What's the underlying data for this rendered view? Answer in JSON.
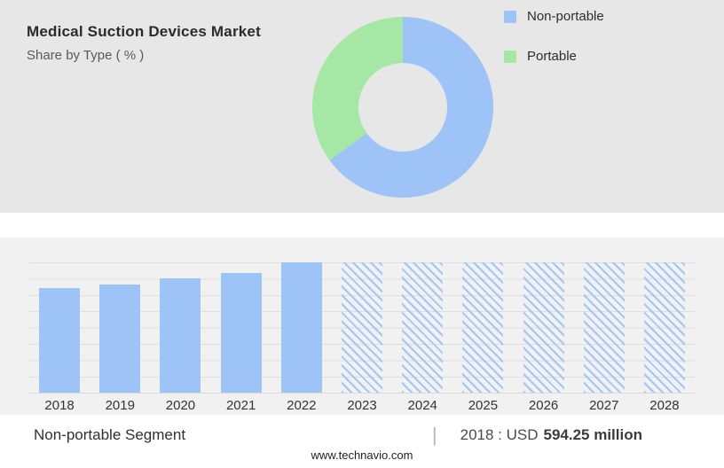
{
  "header": {
    "title": "Medical Suction Devices Market",
    "subtitle": "Share by Type ( % )"
  },
  "legend": [
    {
      "label": "Non-portable",
      "color": "#9dc3f7"
    },
    {
      "label": "Portable",
      "color": "#a5e7a5"
    }
  ],
  "chart_data": [
    {
      "type": "pie",
      "donut": true,
      "title": "Medical Suction Devices Market - Share by Type ( % )",
      "labels": [
        "Non-portable",
        "Portable"
      ],
      "values": [
        65,
        35
      ],
      "colors": [
        "#9dc3f7",
        "#a5e7a5"
      ],
      "legend_position": "right"
    },
    {
      "type": "bar",
      "title": "Non-portable Segment",
      "categories": [
        "2018",
        "2019",
        "2020",
        "2021",
        "2022",
        "2023",
        "2024",
        "2025",
        "2026",
        "2027",
        "2028"
      ],
      "values": [
        80,
        83,
        88,
        92,
        100,
        100,
        100,
        100,
        100,
        100,
        100
      ],
      "bar_color": "#9dc3f7",
      "hatched_from": "2023",
      "grid": true,
      "ylim": [
        0,
        100
      ],
      "xlabel": "",
      "ylabel": "",
      "note": "2023-2028 bars are forecast (hatched); heights are relative index values, 2018 = USD 594.25 million"
    }
  ],
  "footer": {
    "segment_label": "Non-portable Segment",
    "separator": "|",
    "stat_prefix": "2018 : USD",
    "stat_value": "594.25 million",
    "website": "www.technavio.com"
  }
}
